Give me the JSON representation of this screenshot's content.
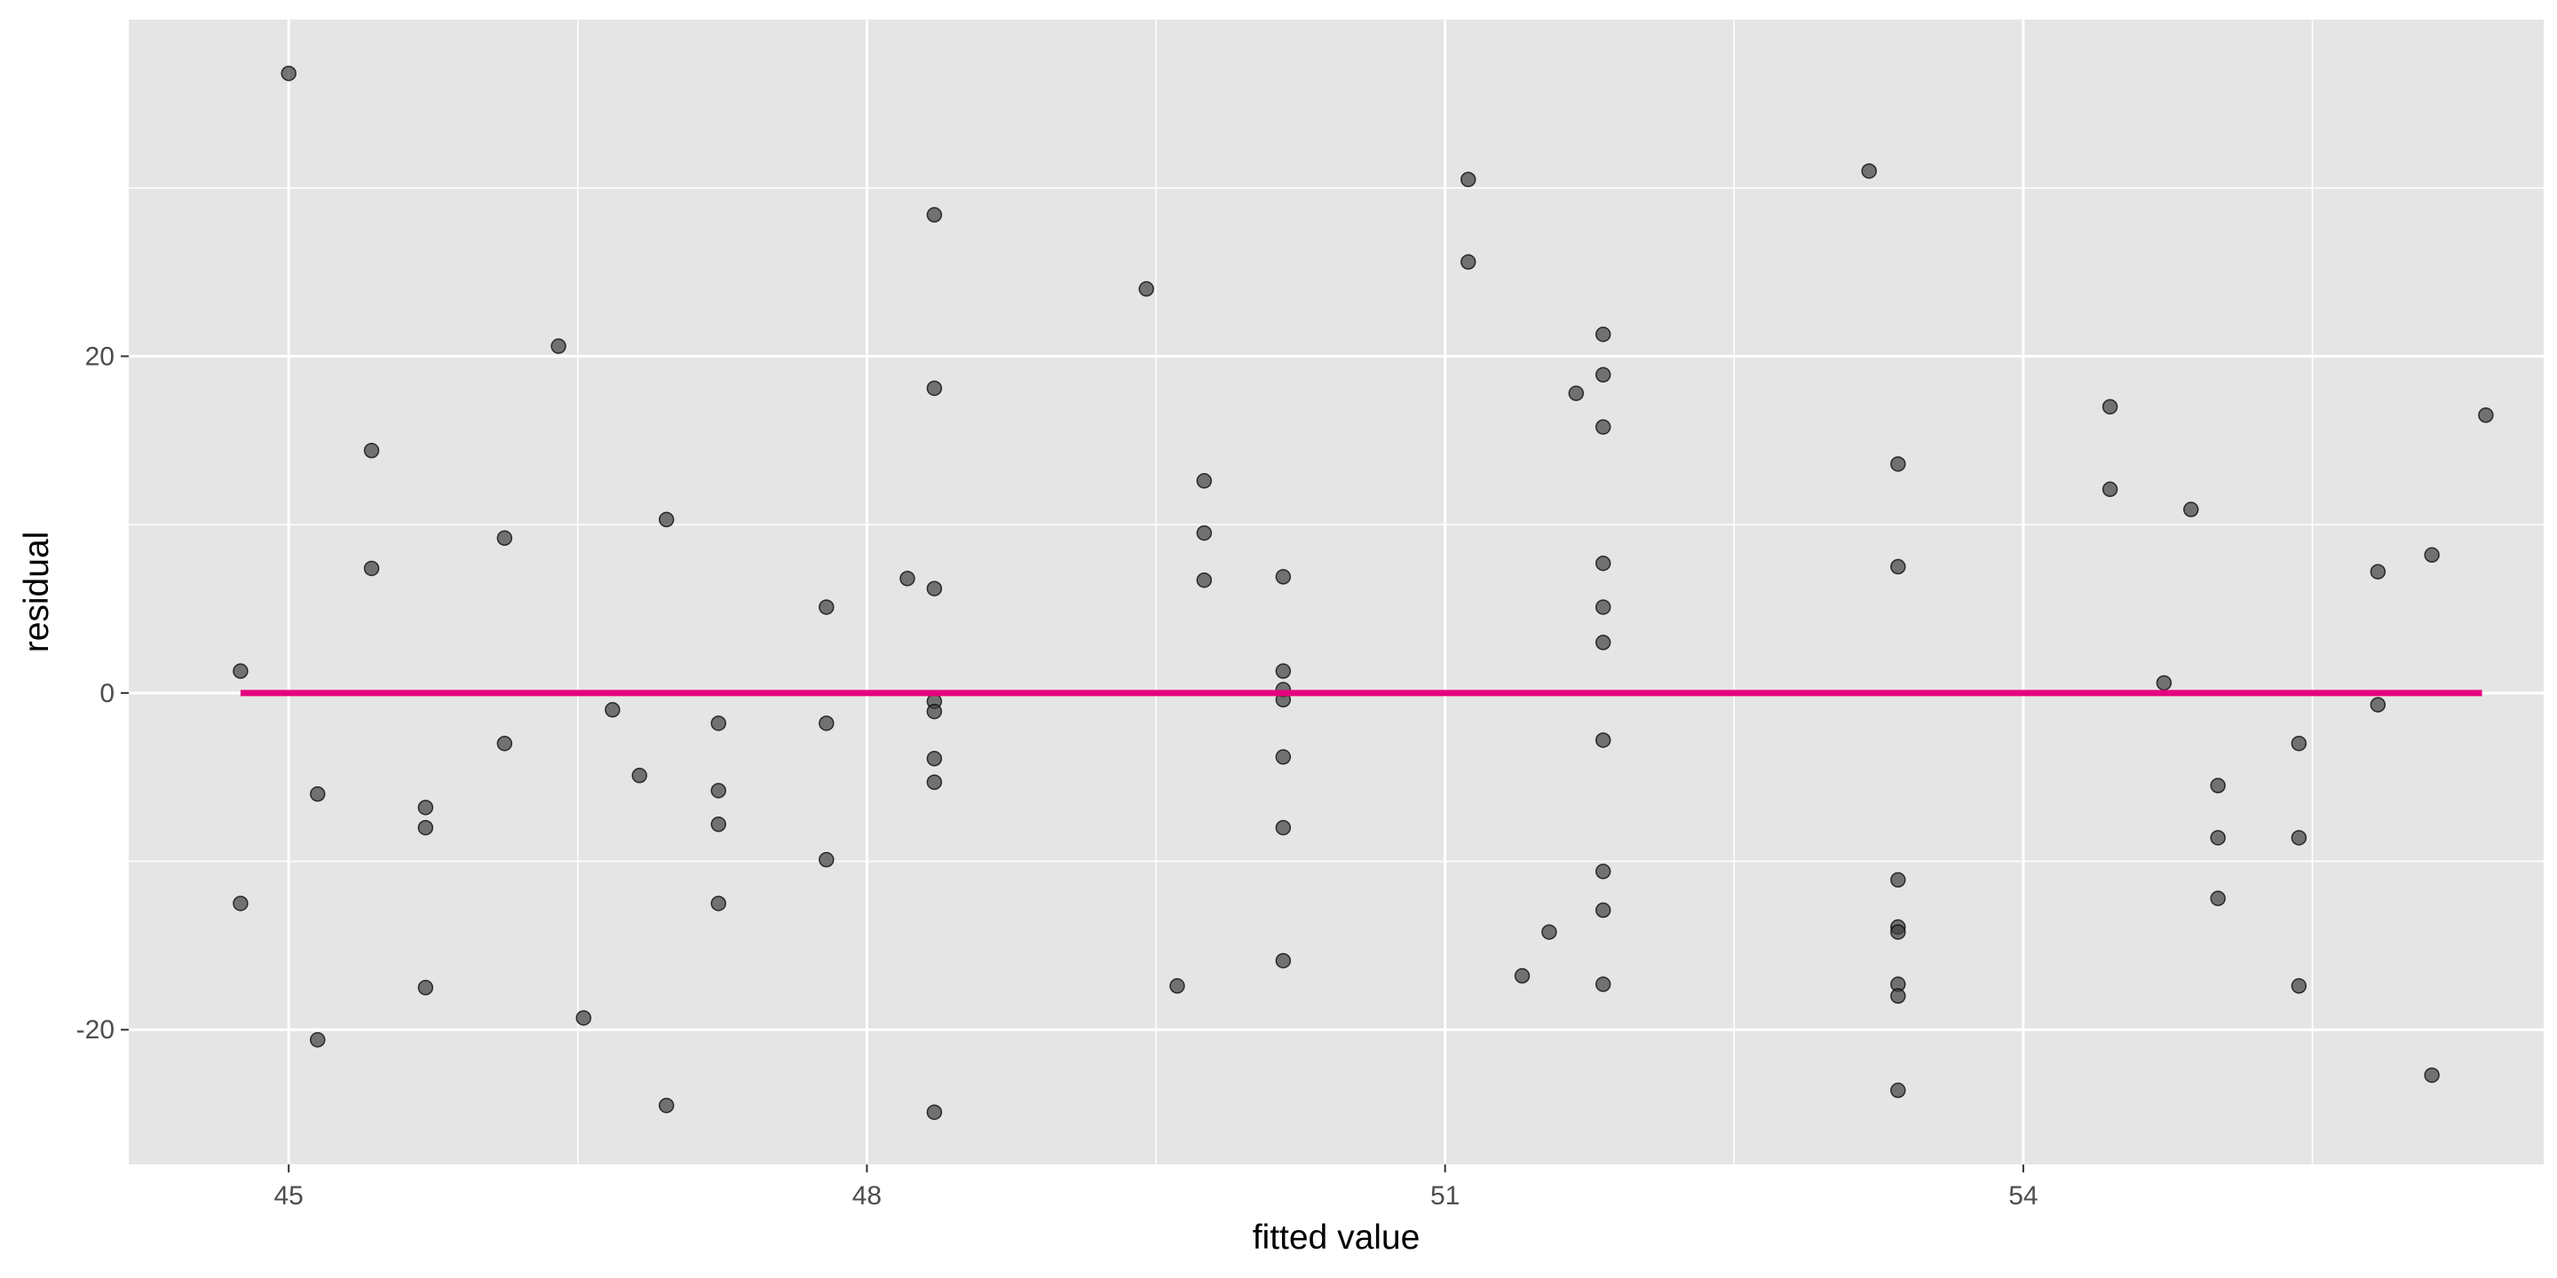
{
  "chart_data": {
    "type": "scatter",
    "xlabel": "fitted value",
    "ylabel": "residual",
    "xlim": [
      44.17,
      56.7
    ],
    "ylim": [
      -28.0,
      40.0
    ],
    "x_ticks": [
      45,
      48,
      51,
      54
    ],
    "x_minor_ticks": [
      46.5,
      49.5,
      52.5,
      55.5
    ],
    "y_ticks": [
      -20,
      0,
      20
    ],
    "y_minor_ticks": [
      -10,
      10,
      30
    ],
    "grid": true,
    "reference_line": {
      "y": 0,
      "x_range": [
        44.75,
        56.38
      ],
      "color": "#E6007E"
    },
    "colors": {
      "panel": "#E5E5E5",
      "grid": "#FFFFFF",
      "point": "#404040"
    },
    "points": [
      {
        "x": 44.75,
        "y": 1.3
      },
      {
        "x": 44.75,
        "y": -12.5
      },
      {
        "x": 45.0,
        "y": 36.8
      },
      {
        "x": 45.15,
        "y": -6.0
      },
      {
        "x": 45.15,
        "y": -20.6
      },
      {
        "x": 45.43,
        "y": 14.4
      },
      {
        "x": 45.43,
        "y": 7.4
      },
      {
        "x": 45.71,
        "y": -6.8
      },
      {
        "x": 45.71,
        "y": -8.0
      },
      {
        "x": 45.71,
        "y": -17.5
      },
      {
        "x": 46.12,
        "y": 9.2
      },
      {
        "x": 46.12,
        "y": -3.0
      },
      {
        "x": 46.4,
        "y": 20.6
      },
      {
        "x": 46.53,
        "y": -19.3
      },
      {
        "x": 46.68,
        "y": -1.0
      },
      {
        "x": 46.82,
        "y": -4.9
      },
      {
        "x": 46.96,
        "y": 10.3
      },
      {
        "x": 46.96,
        "y": -24.5
      },
      {
        "x": 47.23,
        "y": -1.8
      },
      {
        "x": 47.23,
        "y": -5.8
      },
      {
        "x": 47.23,
        "y": -7.8
      },
      {
        "x": 47.23,
        "y": -12.5
      },
      {
        "x": 47.79,
        "y": 5.1
      },
      {
        "x": 47.79,
        "y": -1.8
      },
      {
        "x": 47.79,
        "y": -9.9
      },
      {
        "x": 48.21,
        "y": 6.8
      },
      {
        "x": 48.35,
        "y": 28.4
      },
      {
        "x": 48.35,
        "y": 18.1
      },
      {
        "x": 48.35,
        "y": 6.2
      },
      {
        "x": 48.35,
        "y": -0.5
      },
      {
        "x": 48.35,
        "y": -1.1
      },
      {
        "x": 48.35,
        "y": -3.9
      },
      {
        "x": 48.35,
        "y": -5.3
      },
      {
        "x": 48.35,
        "y": -24.9
      },
      {
        "x": 49.45,
        "y": 24.0
      },
      {
        "x": 49.61,
        "y": -17.4
      },
      {
        "x": 49.75,
        "y": 12.6
      },
      {
        "x": 49.75,
        "y": 9.5
      },
      {
        "x": 49.75,
        "y": 6.7
      },
      {
        "x": 50.16,
        "y": 6.9
      },
      {
        "x": 50.16,
        "y": 1.3
      },
      {
        "x": 50.16,
        "y": 0.2
      },
      {
        "x": 50.16,
        "y": -0.4
      },
      {
        "x": 50.16,
        "y": -3.8
      },
      {
        "x": 50.16,
        "y": -8.0
      },
      {
        "x": 50.16,
        "y": -15.9
      },
      {
        "x": 51.12,
        "y": 30.5
      },
      {
        "x": 51.12,
        "y": 25.6
      },
      {
        "x": 51.4,
        "y": -16.8
      },
      {
        "x": 51.54,
        "y": -14.2
      },
      {
        "x": 51.68,
        "y": 17.8
      },
      {
        "x": 51.82,
        "y": 21.3
      },
      {
        "x": 51.82,
        "y": 18.9
      },
      {
        "x": 51.82,
        "y": 15.8
      },
      {
        "x": 51.82,
        "y": 7.7
      },
      {
        "x": 51.82,
        "y": 5.1
      },
      {
        "x": 51.82,
        "y": 3.0
      },
      {
        "x": 51.82,
        "y": -2.8
      },
      {
        "x": 51.82,
        "y": -10.6
      },
      {
        "x": 51.82,
        "y": -12.9
      },
      {
        "x": 51.82,
        "y": -17.3
      },
      {
        "x": 53.2,
        "y": 31.0
      },
      {
        "x": 53.35,
        "y": 13.6
      },
      {
        "x": 53.35,
        "y": 7.5
      },
      {
        "x": 53.35,
        "y": -11.1
      },
      {
        "x": 53.35,
        "y": -13.9
      },
      {
        "x": 53.35,
        "y": -14.2
      },
      {
        "x": 53.35,
        "y": -17.3
      },
      {
        "x": 53.35,
        "y": -18.0
      },
      {
        "x": 53.35,
        "y": -23.6
      },
      {
        "x": 54.45,
        "y": 17.0
      },
      {
        "x": 54.45,
        "y": 12.1
      },
      {
        "x": 54.73,
        "y": 0.6
      },
      {
        "x": 54.87,
        "y": 10.9
      },
      {
        "x": 55.01,
        "y": -5.5
      },
      {
        "x": 55.01,
        "y": -8.6
      },
      {
        "x": 55.01,
        "y": -12.2
      },
      {
        "x": 55.43,
        "y": -3.0
      },
      {
        "x": 55.43,
        "y": -8.6
      },
      {
        "x": 55.43,
        "y": -17.4
      },
      {
        "x": 55.84,
        "y": 7.2
      },
      {
        "x": 55.84,
        "y": -0.7
      },
      {
        "x": 56.12,
        "y": 8.2
      },
      {
        "x": 56.12,
        "y": -22.7
      },
      {
        "x": 56.4,
        "y": 16.5
      }
    ]
  }
}
